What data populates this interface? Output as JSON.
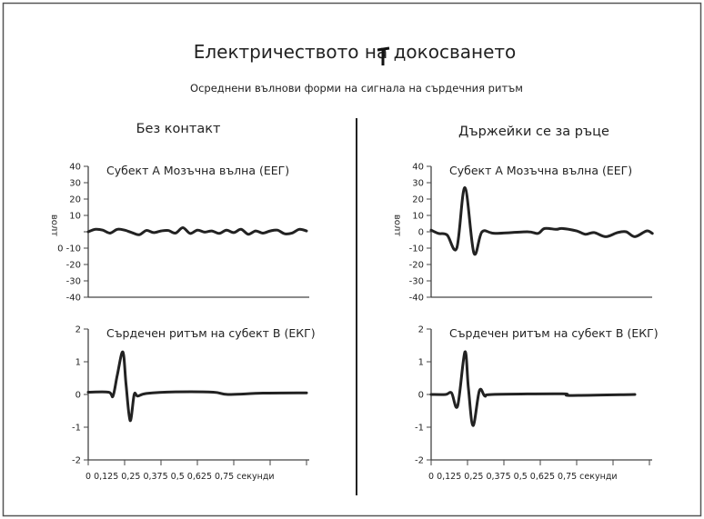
{
  "title": "Електричеството на докосването",
  "subtitle": "Осреднени вълнови форми на сигнала на сърдечния ритъм",
  "columns": [
    "Без контакт",
    "Държейки се за ръце"
  ],
  "colors": {
    "line": "#222222",
    "axis": "#444444",
    "frame": "#555555"
  },
  "chart_data": [
    {
      "type": "line",
      "column": "Без контакт",
      "title": "Субект А Мозъчна вълна (ЕЕГ)",
      "ylabel": "волт",
      "ylim": [
        -40,
        40
      ],
      "xlim": [
        0,
        0.75
      ],
      "ytick_labels": [
        "40",
        "30",
        "20",
        "10",
        "",
        "0 -10",
        "-20",
        "-30",
        "-40"
      ],
      "ytick_values": [
        40,
        30,
        20,
        10,
        0,
        -10,
        -20,
        -30,
        -40
      ],
      "points": [
        [
          0,
          0
        ],
        [
          0.025,
          1.5
        ],
        [
          0.05,
          1
        ],
        [
          0.075,
          -0.8
        ],
        [
          0.1,
          1.5
        ],
        [
          0.125,
          1
        ],
        [
          0.15,
          -0.5
        ],
        [
          0.175,
          -1.8
        ],
        [
          0.2,
          0.8
        ],
        [
          0.225,
          -0.5
        ],
        [
          0.25,
          0.5
        ],
        [
          0.275,
          0.8
        ],
        [
          0.3,
          -0.8
        ],
        [
          0.325,
          2.5
        ],
        [
          0.35,
          -1
        ],
        [
          0.375,
          1
        ],
        [
          0.4,
          -0.2
        ],
        [
          0.425,
          0.5
        ],
        [
          0.45,
          -1
        ],
        [
          0.475,
          1
        ],
        [
          0.5,
          -0.5
        ],
        [
          0.525,
          1.5
        ],
        [
          0.55,
          -1.5
        ],
        [
          0.575,
          0.5
        ],
        [
          0.6,
          -0.8
        ],
        [
          0.625,
          0.5
        ],
        [
          0.65,
          1
        ],
        [
          0.675,
          -1.2
        ],
        [
          0.7,
          -0.8
        ],
        [
          0.725,
          1.5
        ],
        [
          0.75,
          0.5
        ]
      ]
    },
    {
      "type": "line",
      "column": "Без контакт",
      "title": "Сърдечен ритъм на субект B (ЕКГ)",
      "ylim": [
        -2,
        2
      ],
      "xlim": [
        0,
        0.75
      ],
      "ytick_labels": [
        "2",
        "1",
        "0",
        "-1",
        "-2"
      ],
      "ytick_values": [
        2,
        1,
        0,
        -1,
        -2
      ],
      "xtick_values": [
        0,
        0.125,
        0.25,
        0.375,
        0.5,
        0.625,
        0.75
      ],
      "xaxis_text": "0 0,125 0,25 0,375 0,5 0,625 0,75 секунди",
      "points": [
        [
          0,
          0.07
        ],
        [
          0.07,
          0.07
        ],
        [
          0.085,
          -0.05
        ],
        [
          0.1,
          0.6
        ],
        [
          0.119,
          1.3
        ],
        [
          0.13,
          0.3
        ],
        [
          0.144,
          -0.8
        ],
        [
          0.158,
          0
        ],
        [
          0.17,
          -0.05
        ],
        [
          0.2,
          0.03
        ],
        [
          0.3,
          0.08
        ],
        [
          0.43,
          0.07
        ],
        [
          0.48,
          0.0
        ],
        [
          0.6,
          0.04
        ],
        [
          0.75,
          0.05
        ]
      ]
    },
    {
      "type": "line",
      "column": "Държейки се за ръце",
      "title": "Субект А Мозъчна вълна (ЕЕГ)",
      "ylabel": "волт",
      "ylim": [
        -40,
        40
      ],
      "xlim": [
        0,
        0.75
      ],
      "ytick_labels": [
        "40",
        "30",
        "20",
        "10",
        "0",
        "-10",
        "-20",
        "-30",
        "-40"
      ],
      "ytick_values": [
        40,
        30,
        20,
        10,
        0,
        -10,
        -20,
        -30,
        -40
      ],
      "points": [
        [
          0,
          1
        ],
        [
          0.025,
          -1
        ],
        [
          0.055,
          -2
        ],
        [
          0.088,
          -10
        ],
        [
          0.116,
          27
        ],
        [
          0.147,
          -13
        ],
        [
          0.175,
          0
        ],
        [
          0.22,
          -1
        ],
        [
          0.33,
          0
        ],
        [
          0.367,
          -1
        ],
        [
          0.39,
          2
        ],
        [
          0.43,
          1.5
        ],
        [
          0.45,
          2
        ],
        [
          0.5,
          0.5
        ],
        [
          0.53,
          -1.5
        ],
        [
          0.56,
          -0.5
        ],
        [
          0.6,
          -3
        ],
        [
          0.64,
          -0.5
        ],
        [
          0.67,
          0
        ],
        [
          0.7,
          -3
        ],
        [
          0.74,
          0.5
        ],
        [
          0.76,
          -1
        ]
      ]
    },
    {
      "type": "line",
      "column": "Държейки се за ръце",
      "title": "Сърдечен ритъм на субект B (ЕКГ)",
      "ylim": [
        -2,
        2
      ],
      "xlim": [
        0,
        0.75
      ],
      "ytick_labels": [
        "2",
        "1",
        "0",
        "-1",
        "-2"
      ],
      "ytick_values": [
        2,
        1,
        0,
        -1,
        -2
      ],
      "xtick_values": [
        0,
        0.125,
        0.25,
        0.375,
        0.5,
        0.625,
        0.75
      ],
      "xaxis_text": "0 0,125 0,25 0,375 0,5 0,625 0,75 секунди",
      "points": [
        [
          0,
          0
        ],
        [
          0.05,
          0
        ],
        [
          0.07,
          0.05
        ],
        [
          0.091,
          -0.35
        ],
        [
          0.116,
          1.3
        ],
        [
          0.128,
          0.2
        ],
        [
          0.144,
          -0.95
        ],
        [
          0.166,
          0.12
        ],
        [
          0.185,
          -0.05
        ],
        [
          0.21,
          0
        ],
        [
          0.45,
          0.02
        ],
        [
          0.48,
          -0.03
        ],
        [
          0.7,
          0
        ]
      ]
    }
  ]
}
